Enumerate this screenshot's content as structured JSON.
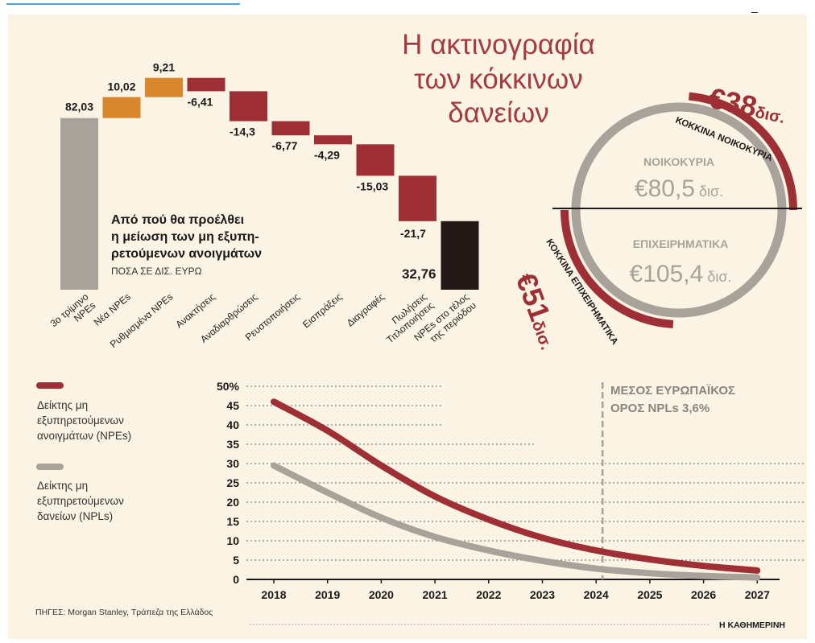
{
  "title": {
    "line1": "Η ακτινογραφία",
    "line2": "των κόκκινων",
    "line3": "δανείων"
  },
  "waterfall": {
    "heading_line1": "Από πού θα προέλθει",
    "heading_line2": "η μείωση των μη εξυπη-",
    "heading_line3": "ρετούμενων ανοιγμάτων",
    "unit_note": "ΠΟΣΑ ΣΕ ΔΙΣ. ΕΥΡΩ"
  },
  "donut": {
    "households_label": "ΝΟΙΚΟΚΥΡΙΑ",
    "households_value": "€80,5",
    "households_unit": "δισ.",
    "business_label": "ΕΠΙΧΕΙΡΗΜΑΤΙΚΑ",
    "business_value": "€105,4",
    "business_unit": "δισ.",
    "red_households_amount": "€38",
    "red_households_unit": "δισ.",
    "red_households_label": "ΚΟΚΚΙΝΑ ΝΟΙΚΟΚΥΡΙΑ",
    "red_business_amount": "€51",
    "red_business_unit": "δισ.",
    "red_business_label": "ΚΟΚΚΙΝΑ ΕΠΙΧΕΙΡΗΜΑΤΙΚΑ",
    "households_red_share": 0.472,
    "business_red_share": 0.484
  },
  "line_chart": {
    "annotation_line1": "ΜΕΣΟΣ ΕΥΡΩΠΑΪΚΟΣ",
    "annotation_line2": "ΟΡΟΣ NPLs 3,6%"
  },
  "footer": {
    "sources": "ΠΗΓΕΣ: Morgan Stanley, Τράπεζα της Ελλάδος",
    "publisher": "Η ΚΑΘΗΜΕΡΙΝΗ"
  },
  "colors": {
    "background": "#fbf3e3",
    "red": "#9e2f35",
    "orange": "#d8872c",
    "gray": "#a8a29a",
    "black": "#231815",
    "title_red": "#a63a3f"
  },
  "chart_data": [
    {
      "type": "bar",
      "subtype": "waterfall",
      "categories": [
        "3ο τρίμηνο NPEs",
        "Νέα NPEs",
        "Ρυθμισμένα NPEs",
        "Ανακτήσεις",
        "Αναδιαρθρώσεις",
        "Ρευστοποιήσεις",
        "Εισπράξεις",
        "Διαγραφές",
        "Πωλήσεις Τιτλοποιήσεις",
        "NPEs στο τέλος της περιόδου"
      ],
      "values": [
        82.03,
        10.02,
        9.21,
        -6.41,
        -14.3,
        -6.77,
        -4.29,
        -15.03,
        -21.7,
        32.76
      ],
      "value_labels": [
        "82,03",
        "10,02",
        "9,21",
        "-6,41",
        "-14,3",
        "-6,77",
        "-4,29",
        "-15,03",
        "-21,7",
        "32,76"
      ],
      "kinds": [
        "total",
        "increase",
        "increase",
        "decrease",
        "decrease",
        "decrease",
        "decrease",
        "decrease",
        "decrease",
        "total"
      ]
    },
    {
      "type": "line",
      "x": [
        "2018",
        "2019",
        "2020",
        "2021",
        "2022",
        "2023",
        "2024",
        "2025",
        "2026",
        "2027"
      ],
      "series": [
        {
          "name": "Δείκτης μη εξυπηρετούμενων ανοιγμάτων (NPEs)",
          "values": [
            46,
            38.5,
            29.5,
            21.5,
            15.5,
            10.8,
            7.5,
            5.2,
            3.5,
            2.3
          ],
          "color": "#9e2f35"
        },
        {
          "name": "Δείκτης μη εξυπηρετούμενων δανείων (NPLs)",
          "values": [
            29.5,
            22.5,
            16,
            11,
            7.5,
            4.8,
            2.8,
            1.6,
            0.9,
            0.5
          ],
          "color": "#a8a29a"
        }
      ],
      "yticks": [
        "50%",
        "45",
        "40",
        "35",
        "30",
        "25",
        "20",
        "15",
        "10",
        "5",
        "0"
      ],
      "ylim": [
        0,
        50
      ],
      "reference_x": "2024"
    }
  ]
}
